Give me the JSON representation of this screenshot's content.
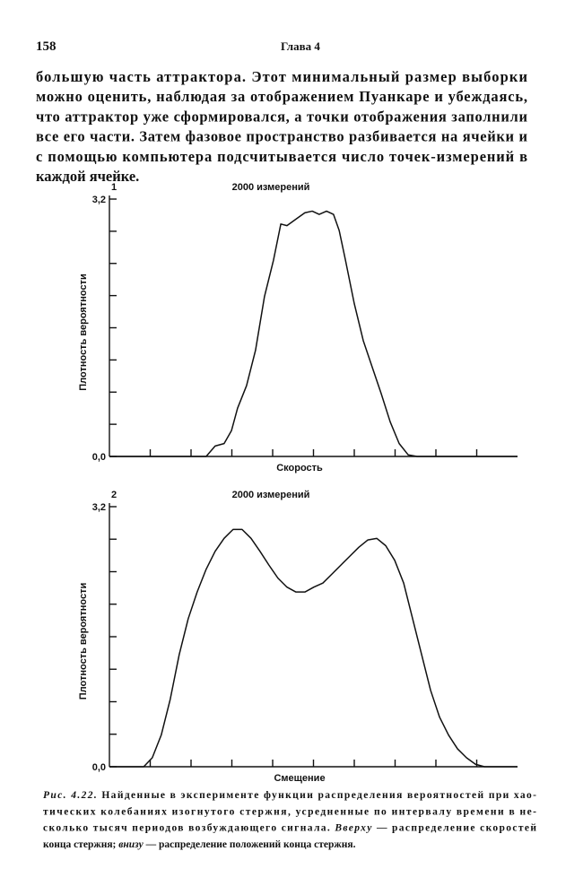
{
  "header": {
    "page_number": "158",
    "chapter": "Глава 4"
  },
  "paragraph": {
    "lines": [
      "большую часть аттрактора. Этот минимальный размер выборки",
      "можно оценить, наблюдая за отображением Пуанкаре и убеждаясь,",
      "что аттрактор уже сформировался, а точки отображения заполнили",
      "все его части. Затем фазовое пространство разбивается на ячейки и",
      "с помощью компьютера подсчитывается число точек-измерений в",
      "каждой ячейке."
    ]
  },
  "chart_data": [
    {
      "type": "line",
      "panel": "1",
      "title": "2000 измерений",
      "x_label": "Скорость",
      "y_label": "Плотность вероятности",
      "color": "#111111",
      "xlim": [
        0,
        10
      ],
      "ylim": [
        0,
        3.2
      ],
      "xticks": [
        1,
        2,
        3,
        4,
        5,
        6,
        7,
        8,
        9
      ],
      "yticks": [
        {
          "value": 0,
          "label": "0,0"
        },
        {
          "value": 3.2,
          "label": "3,2"
        }
      ],
      "yminor_ticks": [
        0.4,
        0.8,
        1.2,
        1.6,
        2.0,
        2.4,
        2.8
      ],
      "x": [
        0,
        2.37,
        2.59,
        2.81,
        2.99,
        3.14,
        3.36,
        3.58,
        3.8,
        4.02,
        4.2,
        4.35,
        4.57,
        4.79,
        4.97,
        5.14,
        5.32,
        5.49,
        5.63,
        5.78,
        6.0,
        6.22,
        6.44,
        6.66,
        6.88,
        7.1,
        7.32,
        7.54,
        10
      ],
      "values": [
        0,
        0,
        0.13,
        0.16,
        0.32,
        0.6,
        0.88,
        1.32,
        1.99,
        2.44,
        2.89,
        2.87,
        2.95,
        3.03,
        3.05,
        3.01,
        3.05,
        3.01,
        2.81,
        2.45,
        1.9,
        1.44,
        1.11,
        0.78,
        0.43,
        0.16,
        0.02,
        0,
        0
      ]
    },
    {
      "type": "line",
      "panel": "2",
      "title": "2000 измерений",
      "x_label": "Смещение",
      "y_label": "Плотность вероятности",
      "color": "#111111",
      "xlim": [
        0,
        10
      ],
      "ylim": [
        0,
        3.2
      ],
      "xticks": [
        1,
        2,
        3,
        4,
        5,
        6,
        7,
        8,
        9
      ],
      "yticks": [
        {
          "value": 0,
          "label": "0,0"
        },
        {
          "value": 3.2,
          "label": "3,2"
        }
      ],
      "yminor_ticks": [
        0.4,
        0.8,
        1.2,
        1.6,
        2.0,
        2.4,
        2.8
      ],
      "x": [
        0,
        0.84,
        1.05,
        1.27,
        1.49,
        1.71,
        1.93,
        2.15,
        2.37,
        2.59,
        2.81,
        3.03,
        3.25,
        3.47,
        3.69,
        3.91,
        4.13,
        4.35,
        4.57,
        4.79,
        5.01,
        5.23,
        5.45,
        5.67,
        5.89,
        6.11,
        6.33,
        6.55,
        6.77,
        6.99,
        7.21,
        7.43,
        7.65,
        7.87,
        8.09,
        8.31,
        8.53,
        8.75,
        8.97,
        9.19,
        10
      ],
      "values": [
        0,
        0,
        0.11,
        0.39,
        0.83,
        1.38,
        1.82,
        2.15,
        2.43,
        2.65,
        2.81,
        2.92,
        2.92,
        2.81,
        2.65,
        2.48,
        2.32,
        2.21,
        2.15,
        2.15,
        2.21,
        2.26,
        2.37,
        2.48,
        2.59,
        2.7,
        2.79,
        2.81,
        2.72,
        2.54,
        2.26,
        1.82,
        1.38,
        0.94,
        0.61,
        0.39,
        0.22,
        0.11,
        0.03,
        0,
        0
      ]
    }
  ],
  "caption": {
    "lines": [
      [
        {
          "text": "Рис. 4.22.",
          "italic": true
        },
        {
          "text": " Найденные в эксперименте функции распределения вероятностей при хао-",
          "italic": false
        }
      ],
      [
        {
          "text": "тических колебаниях изогнутого стержня, усредненные по интервалу времени в не-",
          "italic": false
        }
      ],
      [
        {
          "text": "сколько тысяч периодов возбуждающего сигнала. ",
          "italic": false
        },
        {
          "text": "Вверху",
          "italic": true
        },
        {
          "text": " — распределение скоростей",
          "italic": false
        }
      ],
      [
        {
          "text": "конца стержня; ",
          "italic": false
        },
        {
          "text": "внизу",
          "italic": true
        },
        {
          "text": " — распределение положений конца стержня.",
          "italic": false
        }
      ]
    ]
  }
}
